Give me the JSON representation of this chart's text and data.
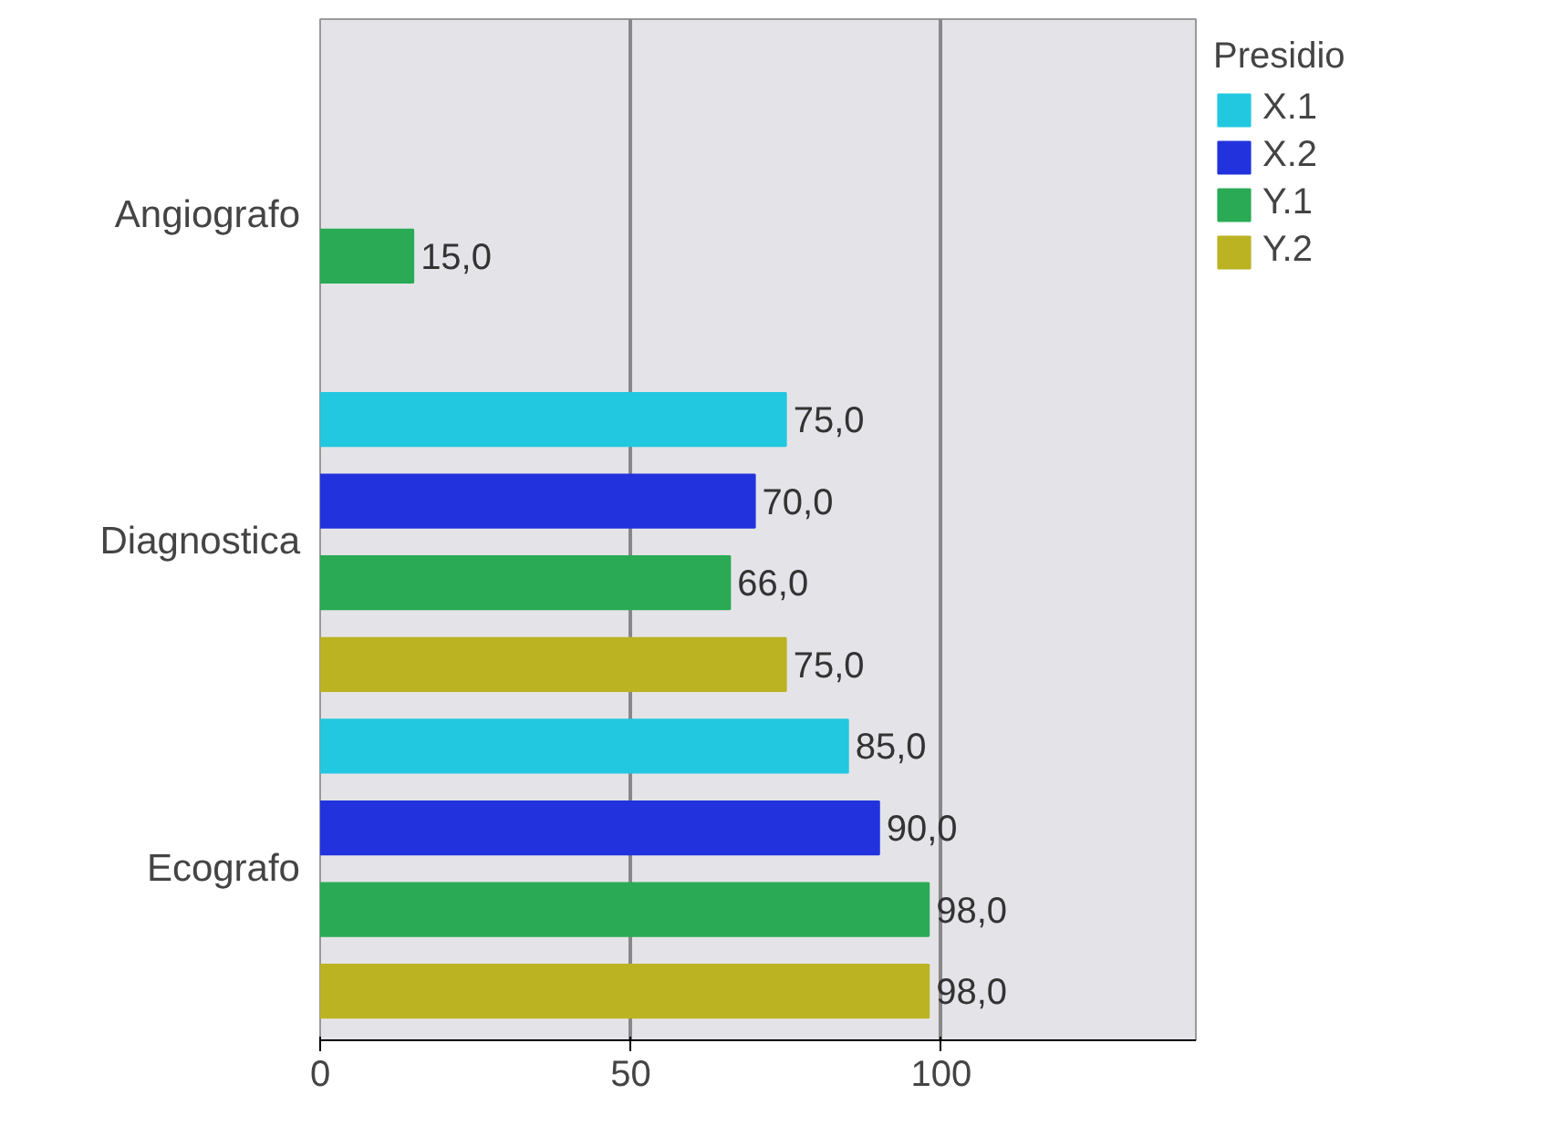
{
  "chart_data": {
    "type": "bar",
    "orientation": "horizontal",
    "legend_title": "Presidio",
    "categories": [
      "Angiografo",
      "Diagnostica",
      "Ecografo"
    ],
    "series": [
      {
        "name": "X.1",
        "color": "#22c8e0",
        "values": [
          null,
          75,
          85
        ],
        "value_labels": [
          null,
          "75,0",
          "85,0"
        ]
      },
      {
        "name": "X.2",
        "color": "#2233dd",
        "values": [
          null,
          70,
          90
        ],
        "value_labels": [
          null,
          "70,0",
          "90,0"
        ]
      },
      {
        "name": "Y.1",
        "color": "#2aaa55",
        "values": [
          15,
          66,
          98
        ],
        "value_labels": [
          "15,0",
          "66,0",
          "98,0"
        ]
      },
      {
        "name": "Y.2",
        "color": "#bbb322",
        "values": [
          null,
          75,
          98
        ],
        "value_labels": [
          null,
          "75,0",
          "98,0"
        ]
      }
    ],
    "xlim": [
      0,
      141
    ],
    "xticks": [
      0,
      50,
      100
    ],
    "grid": "x",
    "legend": "right"
  }
}
